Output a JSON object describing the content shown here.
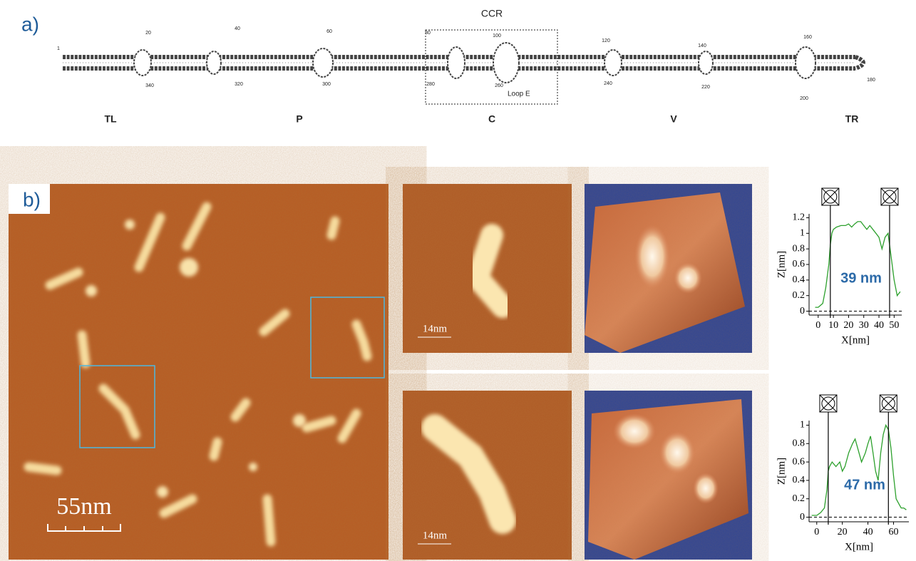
{
  "panel_a": {
    "label": "a)",
    "region_label": "CCR",
    "loop_label": "Loop E",
    "numbers": [
      1,
      20,
      40,
      60,
      80,
      100,
      120,
      140,
      160,
      180,
      200,
      220,
      240,
      260,
      280,
      300,
      320,
      340
    ],
    "domains": [
      "TL",
      "P",
      "C",
      "V",
      "TR"
    ]
  },
  "panel_b": {
    "label": "b)",
    "scale_bars": [
      "55nm",
      "14nm",
      "14nm"
    ]
  },
  "chart_data": [
    {
      "type": "line",
      "ylabel": "Z[nm]",
      "xlabel": "X[nm]",
      "annotation": "39 nm",
      "x": [
        -2,
        0,
        3,
        5,
        7,
        8,
        9,
        10,
        12,
        15,
        18,
        20,
        22,
        24,
        26,
        28,
        30,
        32,
        34,
        36,
        38,
        40,
        42,
        44,
        46,
        48,
        50,
        52,
        54
      ],
      "series": [
        {
          "color": "#2ca02c",
          "values": [
            0.05,
            0.05,
            0.1,
            0.3,
            0.6,
            0.85,
            1.0,
            1.05,
            1.08,
            1.1,
            1.1,
            1.12,
            1.08,
            1.12,
            1.15,
            1.15,
            1.1,
            1.05,
            1.1,
            1.05,
            1.0,
            0.95,
            0.8,
            0.95,
            1.0,
            0.7,
            0.4,
            0.2,
            0.25
          ]
        }
      ],
      "cursors": [
        8,
        47
      ],
      "xlim": [
        -6,
        55
      ],
      "ylim": [
        -0.05,
        1.25
      ],
      "xticks": [
        0,
        10,
        20,
        30,
        40,
        50
      ],
      "yticks": [
        0,
        0.2,
        0.4,
        0.6,
        0.8,
        1,
        1.2
      ]
    },
    {
      "type": "line",
      "ylabel": "Z[nm]",
      "xlabel": "X[nm]",
      "annotation": "47 nm",
      "x": [
        -4,
        0,
        3,
        6,
        8,
        9,
        10,
        12,
        15,
        18,
        20,
        22,
        25,
        28,
        30,
        32,
        35,
        38,
        40,
        42,
        44,
        46,
        48,
        50,
        52,
        54,
        56,
        58,
        60,
        62,
        64,
        66,
        68,
        70
      ],
      "series": [
        {
          "color": "#2ca02c",
          "values": [
            0.02,
            0.02,
            0.05,
            0.1,
            0.3,
            0.5,
            0.55,
            0.6,
            0.55,
            0.6,
            0.5,
            0.55,
            0.7,
            0.8,
            0.85,
            0.75,
            0.6,
            0.7,
            0.8,
            0.88,
            0.7,
            0.5,
            0.4,
            0.7,
            0.9,
            1.0,
            0.95,
            0.75,
            0.45,
            0.2,
            0.15,
            0.1,
            0.1,
            0.08
          ]
        }
      ],
      "cursors": [
        9,
        56
      ],
      "xlim": [
        -6,
        72
      ],
      "ylim": [
        -0.05,
        1.05
      ],
      "xticks": [
        0,
        20,
        40,
        60
      ],
      "yticks": [
        0,
        0.2,
        0.4,
        0.6,
        0.8,
        1
      ]
    }
  ]
}
